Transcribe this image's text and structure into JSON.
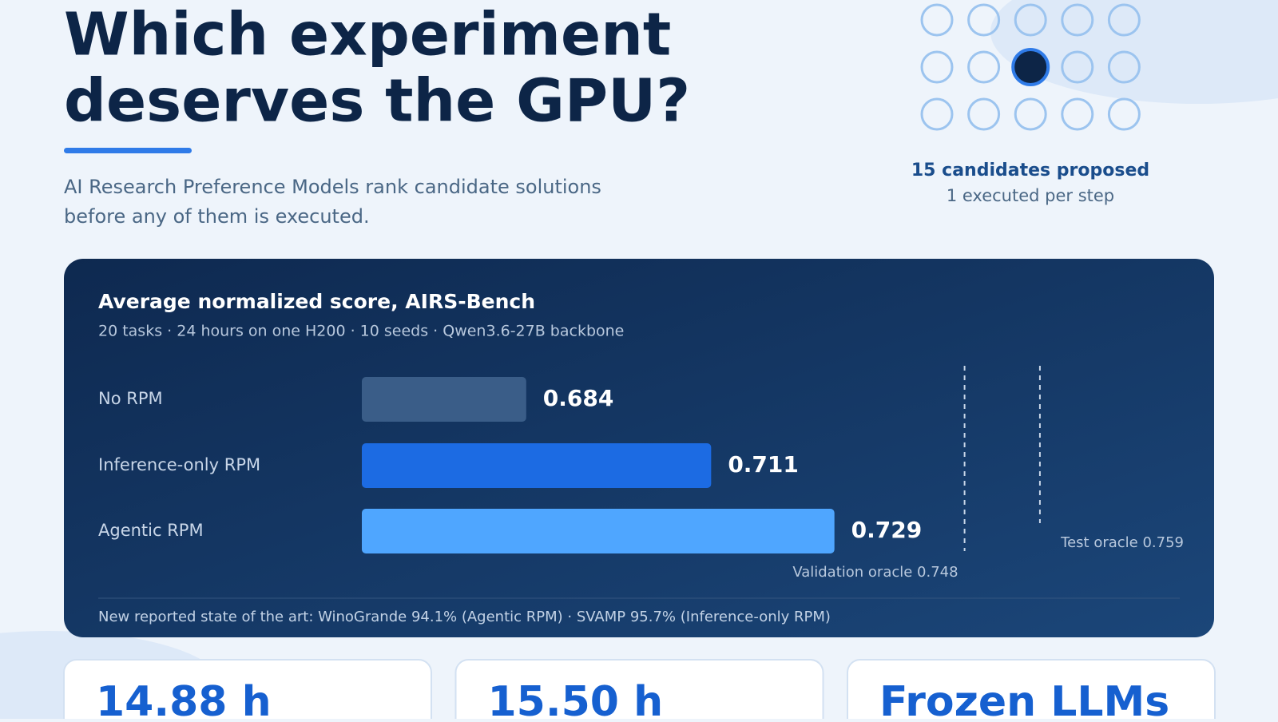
{
  "header": {
    "title_lines": [
      "Which experiment",
      "deserves the GPU?"
    ],
    "subtitle_lines": [
      "AI Research Preference Models rank candidate solutions",
      "before any of them is executed."
    ]
  },
  "candidates": {
    "headline": "15 candidates proposed",
    "note": "1 executed per step"
  },
  "chart_data": {
    "type": "bar",
    "orientation": "horizontal",
    "title": "Average normalized score, AIRS-Bench",
    "subtitle": "20 tasks · 24 hours on one H200 · 10 seeds · Qwen3.6-27B backbone",
    "categories": [
      "No RPM",
      "Inference-only RPM",
      "Agentic RPM"
    ],
    "values": [
      0.684,
      0.711,
      0.729
    ],
    "colors": [
      "#3a5d88",
      "#1c6be3",
      "#4fa6ff"
    ],
    "xlim": [
      0.66,
      0.78
    ],
    "reference_lines": [
      {
        "label": "Validation oracle 0.748",
        "value": 0.748
      },
      {
        "label": "Test oracle 0.759",
        "value": 0.759
      }
    ],
    "footnote": "New reported state of the art: WinoGrande 94.1% (Agentic RPM) · SVAMP 95.7% (Inference-only RPM)"
  },
  "cards": [
    "14.88 h",
    "15.50 h",
    "Frozen LLMs"
  ]
}
